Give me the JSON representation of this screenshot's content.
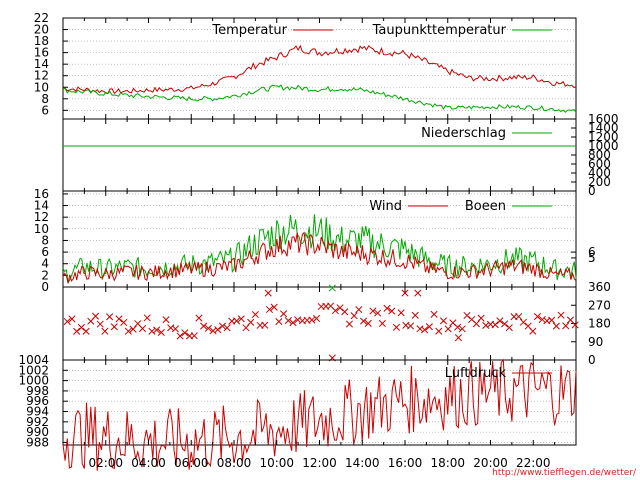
{
  "footer_url": "http://www.tiefflegen.de/wetter/",
  "colors": {
    "red": "#cc0000",
    "green": "#00aa00",
    "url": "#dd2222",
    "grid": "#999999"
  },
  "chart_data": [
    {
      "type": "line",
      "series": [
        {
          "name": "Temperatur",
          "color": "#cc0000",
          "points": [
            [
              0,
              9.8
            ],
            [
              1,
              9.6
            ],
            [
              2,
              9.3
            ],
            [
              3,
              9.3
            ],
            [
              4,
              9.5
            ],
            [
              5,
              9.6
            ],
            [
              6,
              9.8
            ],
            [
              7,
              10.6
            ],
            [
              8,
              11.8
            ],
            [
              9,
              13.8
            ],
            [
              10,
              15.2
            ],
            [
              11,
              16.8
            ],
            [
              12,
              16.0
            ],
            [
              13,
              16.4
            ],
            [
              14,
              16.8
            ],
            [
              15,
              16.2
            ],
            [
              16,
              15.8
            ],
            [
              17,
              14.4
            ],
            [
              18,
              12.8
            ],
            [
              19,
              11.6
            ],
            [
              20,
              11.5
            ],
            [
              21,
              11.7
            ],
            [
              22,
              11.7
            ],
            [
              23,
              10.7
            ],
            [
              24,
              10.4
            ]
          ]
        },
        {
          "name": "Taupunkttemperatur",
          "color": "#00aa00",
          "points": [
            [
              0,
              9.5
            ],
            [
              1,
              9.2
            ],
            [
              2,
              8.9
            ],
            [
              3,
              8.6
            ],
            [
              4,
              8.4
            ],
            [
              5,
              8.2
            ],
            [
              6,
              8.0
            ],
            [
              7,
              8.0
            ],
            [
              8,
              8.5
            ],
            [
              9,
              9.4
            ],
            [
              10,
              10.0
            ],
            [
              11,
              9.9
            ],
            [
              12,
              9.6
            ],
            [
              13,
              9.8
            ],
            [
              14,
              9.5
            ],
            [
              15,
              8.8
            ],
            [
              16,
              8.0
            ],
            [
              17,
              7.2
            ],
            [
              18,
              6.4
            ],
            [
              19,
              6.5
            ],
            [
              20,
              6.6
            ],
            [
              21,
              6.6
            ],
            [
              22,
              6.5
            ],
            [
              23,
              6.2
            ],
            [
              24,
              5.8
            ]
          ]
        }
      ],
      "yticks": [
        6,
        8,
        10,
        12,
        14,
        16,
        18,
        20,
        22
      ],
      "ylim": [
        4.5,
        22
      ]
    },
    {
      "type": "line",
      "series": [
        {
          "name": "Niederschlag",
          "color": "#00aa00",
          "points": [
            [
              0,
              1000
            ],
            [
              24,
              1000
            ]
          ]
        }
      ],
      "yticks_right": [
        0,
        200,
        400,
        600,
        800,
        1000,
        1200,
        1400,
        1600
      ],
      "ylim": [
        0,
        1600
      ]
    },
    {
      "type": "line",
      "series": [
        {
          "name": "Wind",
          "color": "#cc0000",
          "points": [
            [
              0,
              1.5
            ],
            [
              1,
              2.5
            ],
            [
              2,
              2.2
            ],
            [
              3,
              2.6
            ],
            [
              4,
              2.4
            ],
            [
              5,
              2.8
            ],
            [
              6,
              3.0
            ],
            [
              7,
              3.2
            ],
            [
              8,
              3.6
            ],
            [
              9,
              5.5
            ],
            [
              10,
              7.0
            ],
            [
              11,
              7.5
            ],
            [
              12,
              7.2
            ],
            [
              13,
              6.0
            ],
            [
              14,
              5.8
            ],
            [
              15,
              5.2
            ],
            [
              16,
              4.6
            ],
            [
              17,
              3.2
            ],
            [
              18,
              2.5
            ],
            [
              19,
              2.6
            ],
            [
              20,
              3.0
            ],
            [
              21,
              3.6
            ],
            [
              22,
              3.2
            ],
            [
              23,
              2.0
            ],
            [
              24,
              2.0
            ]
          ]
        },
        {
          "name": "Boeen",
          "color": "#00aa00",
          "points": [
            [
              0,
              2.0
            ],
            [
              1,
              3.5
            ],
            [
              2,
              3.0
            ],
            [
              3,
              3.4
            ],
            [
              4,
              3.2
            ],
            [
              5,
              3.6
            ],
            [
              6,
              3.8
            ],
            [
              7,
              4.2
            ],
            [
              8,
              4.8
            ],
            [
              9,
              7.5
            ],
            [
              10,
              9.5
            ],
            [
              11,
              10.0
            ],
            [
              12,
              9.6
            ],
            [
              13,
              8.0
            ],
            [
              14,
              8.0
            ],
            [
              15,
              7.2
            ],
            [
              16,
              6.4
            ],
            [
              17,
              4.6
            ],
            [
              18,
              3.6
            ],
            [
              19,
              3.6
            ],
            [
              20,
              4.0
            ],
            [
              21,
              4.8
            ],
            [
              22,
              4.4
            ],
            [
              23,
              3.0
            ],
            [
              24,
              2.8
            ]
          ]
        }
      ],
      "yticks": [
        0,
        2,
        4,
        6,
        8,
        10,
        12,
        14,
        16
      ],
      "yticks_right": [
        5,
        6
      ],
      "ylim": [
        0,
        16.5
      ]
    },
    {
      "type": "scatter",
      "marker": "x",
      "color": "#cc0000",
      "base_direction": [
        [
          0,
          170
        ],
        [
          1,
          180
        ],
        [
          2,
          185
        ],
        [
          3,
          175
        ],
        [
          4,
          170
        ],
        [
          5,
          165
        ],
        [
          6,
          160
        ],
        [
          7,
          170
        ],
        [
          8,
          180
        ],
        [
          9,
          205
        ],
        [
          10,
          220
        ],
        [
          11,
          225
        ],
        [
          12,
          225
        ],
        [
          13,
          220
        ],
        [
          14,
          220
        ],
        [
          15,
          215
        ],
        [
          16,
          200
        ],
        [
          17,
          190
        ],
        [
          18,
          185
        ],
        [
          19,
          180
        ],
        [
          20,
          190
        ],
        [
          21,
          200
        ],
        [
          22,
          185
        ],
        [
          23,
          180
        ],
        [
          24,
          180
        ]
      ],
      "outliers": [
        [
          9.6,
          330
        ],
        [
          12.6,
          10
        ],
        [
          16.0,
          330
        ],
        [
          16.6,
          330
        ],
        [
          18.5,
          110
        ]
      ],
      "green_marker": [
        12.6,
        360
      ],
      "yticks_right": [
        0,
        90,
        180,
        270,
        360
      ],
      "ylim": [
        0,
        360
      ]
    },
    {
      "type": "line",
      "series": [
        {
          "name": "Luftdruck",
          "color": "#cc0000",
          "points": [
            [
              0,
              989.6
            ],
            [
              1,
              989.3
            ],
            [
              2,
              989.0
            ],
            [
              3,
              988.6
            ],
            [
              4,
              988.2
            ],
            [
              5,
              988.1
            ],
            [
              6,
              988.2
            ],
            [
              7,
              988.6
            ],
            [
              8,
              989.0
            ],
            [
              9,
              989.6
            ],
            [
              10,
              990.5
            ],
            [
              11,
              991.3
            ],
            [
              12,
              992.3
            ],
            [
              13,
              993.3
            ],
            [
              14,
              994.4
            ],
            [
              15,
              995.3
            ],
            [
              16,
              996.1
            ],
            [
              17,
              996.6
            ],
            [
              18,
              997.0
            ],
            [
              19,
              997.4
            ],
            [
              20,
              997.6
            ],
            [
              21,
              997.8
            ],
            [
              22,
              998.0
            ],
            [
              23,
              998.0
            ],
            [
              24,
              998.0
            ]
          ]
        }
      ],
      "yticks": [
        988,
        990,
        992,
        994,
        996,
        998,
        1000,
        1002,
        1004
      ],
      "ylim": [
        987.5,
        1004
      ]
    }
  ],
  "x_axis": {
    "hours": [
      2,
      4,
      6,
      8,
      10,
      12,
      14,
      16,
      18,
      20,
      22
    ],
    "labels": [
      "02:00",
      "04:00",
      "06:00",
      "08:00",
      "10:00",
      "12:00",
      "14:00",
      "16:00",
      "18:00",
      "20:00",
      "22:00"
    ],
    "xlim": [
      0,
      24
    ]
  }
}
